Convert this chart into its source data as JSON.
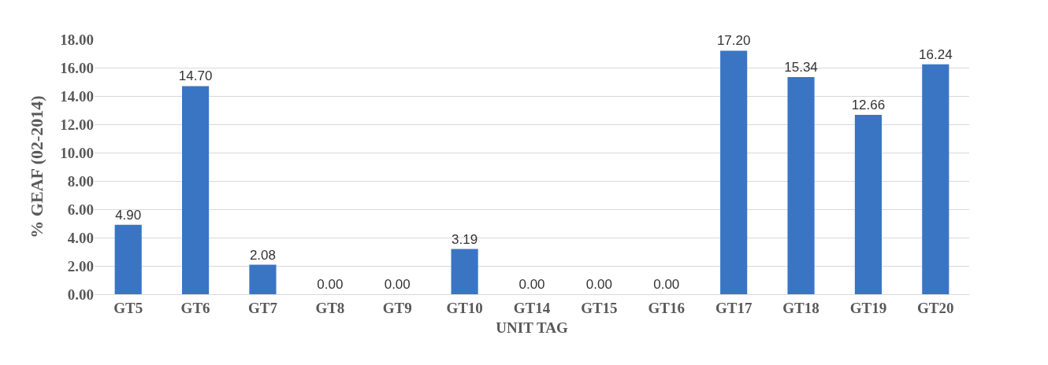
{
  "chart_data": {
    "type": "bar",
    "xlabel": "UNIT TAG",
    "ylabel": "% GEAF (02-2014)",
    "categories": [
      "GT5",
      "GT6",
      "GT7",
      "GT8",
      "GT9",
      "GT10",
      "GT14",
      "GT15",
      "GT16",
      "GT17",
      "GT18",
      "GT19",
      "GT20"
    ],
    "values": [
      4.9,
      14.7,
      2.08,
      0.0,
      0.0,
      3.19,
      0.0,
      0.0,
      0.0,
      17.2,
      15.34,
      12.66,
      16.24
    ],
    "value_labels": [
      "4.90",
      "14.70",
      "2.08",
      "0.00",
      "0.00",
      "3.19",
      "0.00",
      "0.00",
      "0.00",
      "17.20",
      "15.34",
      "12.66",
      "16.24"
    ],
    "color": "#3a75c4",
    "ylim": [
      0,
      18
    ],
    "yticks": [
      {
        "value": 0,
        "label": "0.00"
      },
      {
        "value": 2,
        "label": "2.00"
      },
      {
        "value": 4,
        "label": "4.00"
      },
      {
        "value": 6,
        "label": "6.00"
      },
      {
        "value": 8,
        "label": "8.00"
      },
      {
        "value": 10,
        "label": "10.00"
      },
      {
        "value": 12,
        "label": "12.00"
      },
      {
        "value": 14,
        "label": "14.00"
      },
      {
        "value": 16,
        "label": "16.00"
      },
      {
        "value": 18,
        "label": "18.00"
      }
    ],
    "grid": "y"
  }
}
